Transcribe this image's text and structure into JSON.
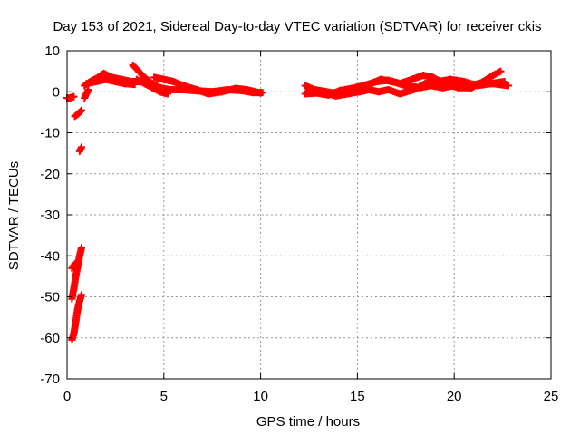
{
  "chart_data": {
    "type": "scatter",
    "title": "Day 153 of 2021, Sidereal Day-to-day VTEC variation (SDTVAR) for receiver ckis",
    "xlabel": "GPS time / hours",
    "ylabel": "SDTVAR / TECUs",
    "xlim": [
      0,
      25
    ],
    "ylim": [
      -70,
      10
    ],
    "xticks": [
      0,
      5,
      10,
      15,
      20,
      25
    ],
    "yticks": [
      10,
      0,
      -10,
      -20,
      -30,
      -40,
      -50,
      -60,
      -70
    ],
    "grid": true,
    "legend": "none",
    "marker_color": "#ff0000",
    "marker": "plus",
    "series": [
      {
        "values_note": "",
        "tracks": [
          [
            [
              0.0,
              -1.5
            ],
            [
              0.1,
              -1.6
            ],
            [
              0.2,
              -1.4
            ],
            [
              0.35,
              -1.2
            ]
          ],
          [
            [
              0.25,
              -60.5
            ],
            [
              0.35,
              -59
            ],
            [
              0.45,
              -56
            ],
            [
              0.55,
              -53
            ],
            [
              0.65,
              -51
            ],
            [
              0.75,
              -49.5
            ]
          ],
          [
            [
              0.25,
              -50.5
            ],
            [
              0.35,
              -48
            ],
            [
              0.45,
              -45
            ],
            [
              0.55,
              -42.5
            ],
            [
              0.65,
              -40
            ],
            [
              0.75,
              -38
            ]
          ],
          [
            [
              0.25,
              -43
            ],
            [
              0.4,
              -42
            ],
            [
              0.55,
              -41.5
            ]
          ],
          [
            [
              0.65,
              -14.5
            ],
            [
              0.75,
              -13.5
            ]
          ],
          [
            [
              0.4,
              -6
            ],
            [
              0.55,
              -5.5
            ],
            [
              0.75,
              -4.5
            ]
          ],
          [
            [
              0.9,
              -1.5
            ],
            [
              1.0,
              -0.5
            ],
            [
              1.1,
              0.5
            ]
          ],
          [
            [
              0.9,
              1.5
            ],
            [
              1.2,
              2.5
            ],
            [
              1.6,
              3.5
            ],
            [
              1.9,
              4.5
            ],
            [
              2.3,
              3.5
            ],
            [
              2.8,
              3.0
            ],
            [
              3.3,
              2.5
            ],
            [
              3.8,
              2.5
            ]
          ],
          [
            [
              1.0,
              2.0
            ],
            [
              1.5,
              2.5
            ],
            [
              2.0,
              3.0
            ],
            [
              2.5,
              2.5
            ],
            [
              3.0,
              2.0
            ],
            [
              3.5,
              1.8
            ]
          ],
          [
            [
              3.4,
              6.5
            ],
            [
              3.7,
              5
            ],
            [
              4.0,
              3.5
            ],
            [
              4.4,
              2
            ],
            [
              4.8,
              1.0
            ],
            [
              5.3,
              0.5
            ],
            [
              6.0,
              0.5
            ],
            [
              6.8,
              0.2
            ],
            [
              7.5,
              0.0
            ],
            [
              8.3,
              0.5
            ],
            [
              9.0,
              0.3
            ],
            [
              9.6,
              -0.2
            ],
            [
              10.1,
              -0.2
            ]
          ],
          [
            [
              4.5,
              3.5
            ],
            [
              5.0,
              3.0
            ],
            [
              5.5,
              2.5
            ],
            [
              6.0,
              1.5
            ],
            [
              6.7,
              0.5
            ],
            [
              7.3,
              -0.5
            ],
            [
              8.0,
              0.0
            ],
            [
              8.7,
              0.8
            ],
            [
              9.3,
              0.5
            ],
            [
              10.0,
              -0.3
            ]
          ],
          [
            [
              3.6,
              3.0
            ],
            [
              4.0,
              2.0
            ],
            [
              4.4,
              1.0
            ],
            [
              4.8,
              0.0
            ],
            [
              5.2,
              -0.5
            ]
          ],
          [
            [
              12.3,
              1.5
            ],
            [
              12.8,
              0.5
            ],
            [
              13.4,
              0.0
            ],
            [
              14.0,
              -0.5
            ],
            [
              14.6,
              0.0
            ],
            [
              15.2,
              1.0
            ],
            [
              15.7,
              2.0
            ],
            [
              16.2,
              3.0
            ],
            [
              16.8,
              2.5
            ],
            [
              17.5,
              1.5
            ],
            [
              18.2,
              1.0
            ],
            [
              18.8,
              1.5
            ],
            [
              19.4,
              1.0
            ],
            [
              20.0,
              1.5
            ],
            [
              20.7,
              1.5
            ],
            [
              21.3,
              2.0
            ],
            [
              22.0,
              2.0
            ],
            [
              22.8,
              1.5
            ]
          ],
          [
            [
              12.3,
              -0.5
            ],
            [
              12.9,
              -0.3
            ],
            [
              13.5,
              -0.8
            ],
            [
              14.1,
              0.3
            ],
            [
              14.7,
              0.8
            ],
            [
              15.3,
              1.5
            ],
            [
              16.0,
              2.5
            ],
            [
              16.6,
              2.8
            ],
            [
              17.2,
              2.0
            ],
            [
              17.8,
              3.0
            ],
            [
              18.4,
              4.0
            ],
            [
              18.9,
              3.5
            ],
            [
              19.5,
              2.0
            ],
            [
              20.2,
              1.0
            ],
            [
              20.9,
              1.0
            ],
            [
              21.5,
              2.5
            ],
            [
              22.0,
              4.0
            ],
            [
              22.4,
              5.0
            ]
          ],
          [
            [
              12.5,
              0.5
            ],
            [
              13.2,
              -0.2
            ],
            [
              13.9,
              -1.0
            ],
            [
              14.5,
              -0.5
            ],
            [
              15.1,
              0.0
            ],
            [
              15.6,
              0.5
            ],
            [
              16.1,
              0.0
            ],
            [
              16.6,
              0.5
            ],
            [
              17.2,
              -0.5
            ],
            [
              17.9,
              0.5
            ],
            [
              18.5,
              2.0
            ],
            [
              19.2,
              2.5
            ],
            [
              19.8,
              3.0
            ],
            [
              20.5,
              2.5
            ],
            [
              21.2,
              1.5
            ],
            [
              21.9,
              2.0
            ],
            [
              22.6,
              2.5
            ]
          ]
        ]
      }
    ]
  }
}
